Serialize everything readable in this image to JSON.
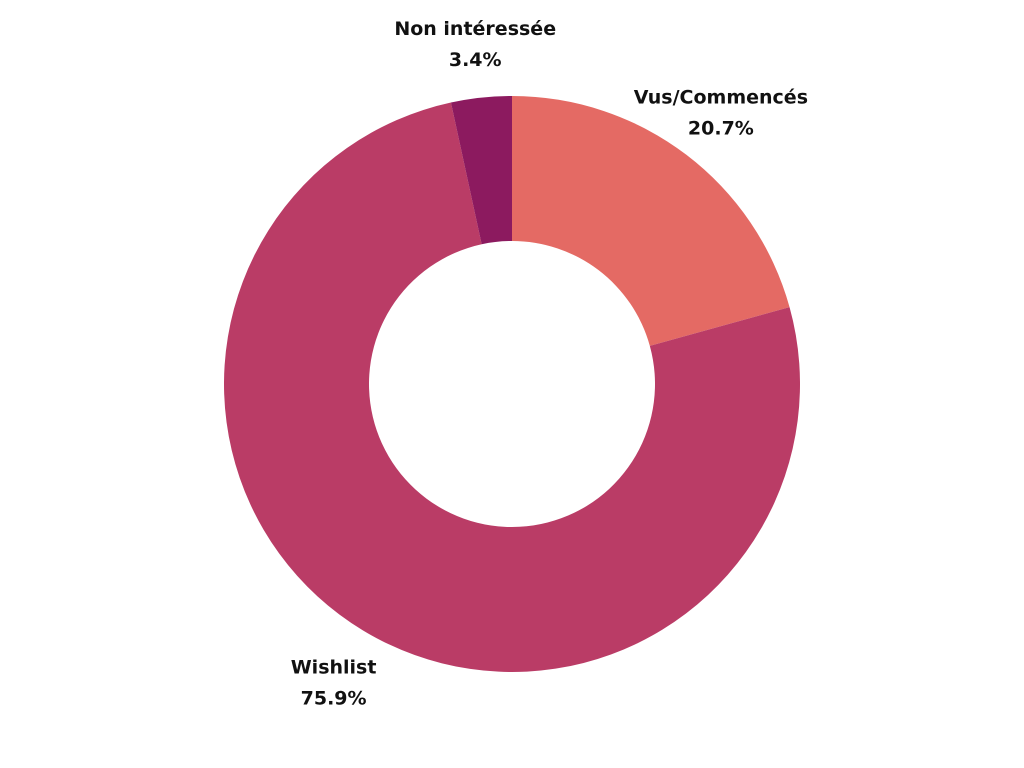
{
  "chart_data": {
    "type": "pie",
    "variant": "donut",
    "title": "",
    "slices": [
      {
        "label": "Vus/Commencés",
        "value": 20.7,
        "value_label": "20.7%",
        "color": "#e46a64"
      },
      {
        "label": "Wishlist",
        "value": 75.9,
        "value_label": "75.9%",
        "color": "#ba3c66"
      },
      {
        "label": "Non intéressée",
        "value": 3.4,
        "value_label": "3.4%",
        "color": "#8c1a5f"
      }
    ],
    "legend": "none",
    "labels": "outside"
  }
}
